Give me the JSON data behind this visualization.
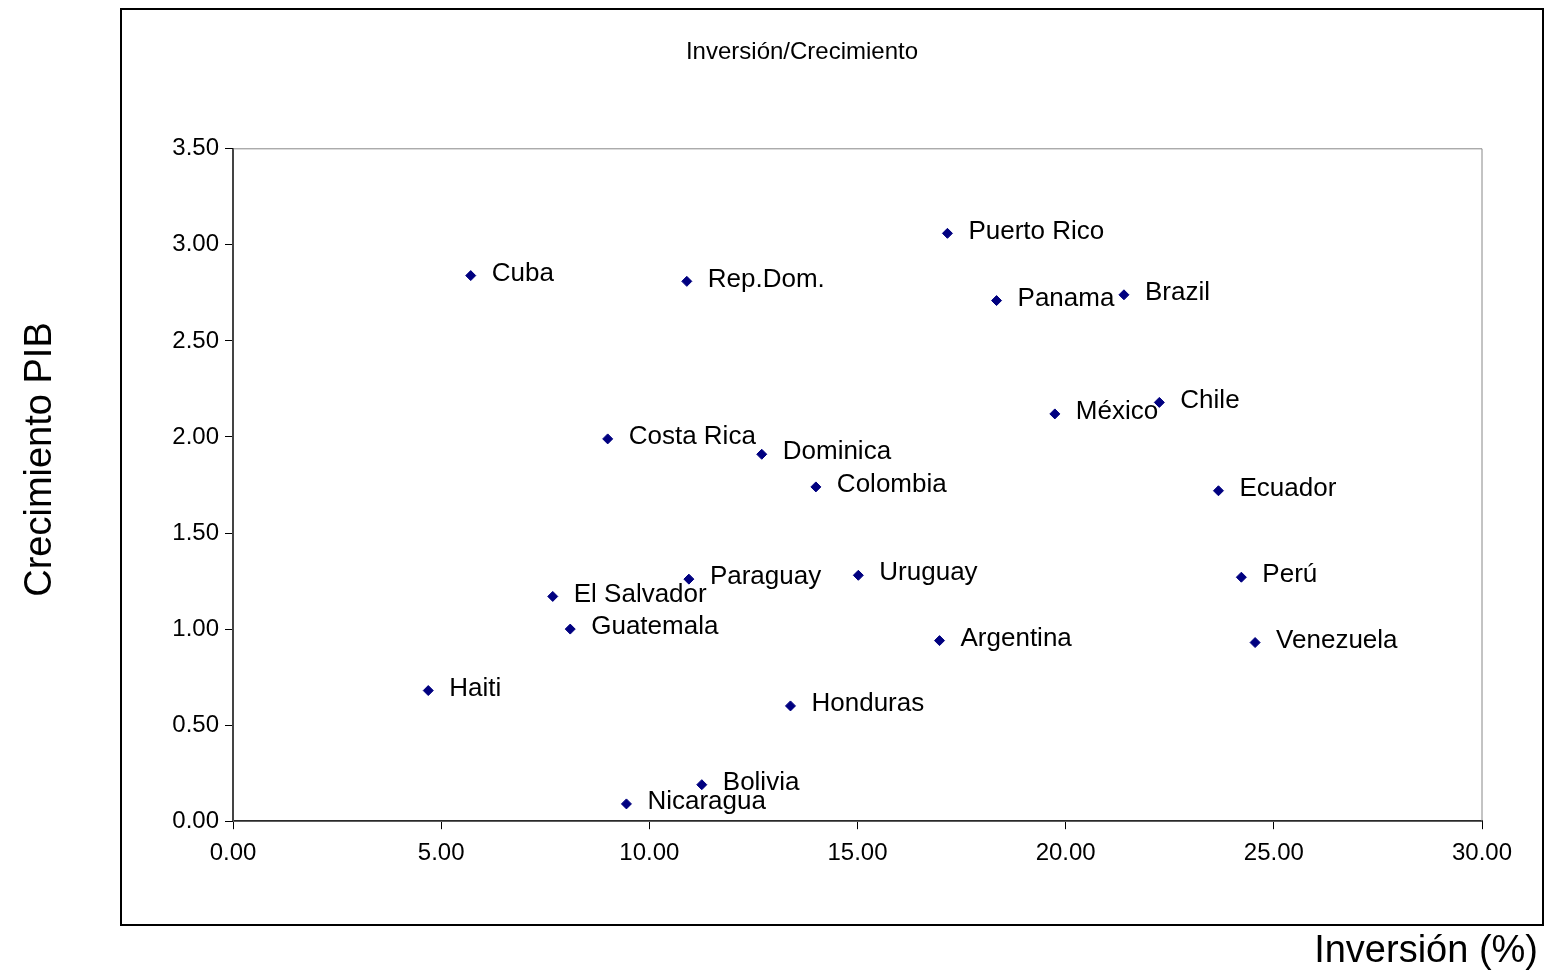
{
  "chart_data": {
    "type": "scatter",
    "title": "Inversión/Crecimiento",
    "xlabel": "Inversión (%)",
    "ylabel": "Crecimiento PIB",
    "x": [
      5.71,
      10.9,
      17.16,
      18.34,
      21.4,
      19.74,
      22.25,
      9.0,
      12.7,
      14.0,
      23.67,
      10.95,
      15.02,
      24.22,
      7.68,
      8.1,
      16.97,
      24.55,
      4.69,
      13.39,
      11.26,
      9.45
    ],
    "series": [
      {
        "color": "#000080",
        "values": [
          2.84,
          2.81,
          3.06,
          2.71,
          2.74,
          2.12,
          2.18,
          1.99,
          1.91,
          1.74,
          1.72,
          1.26,
          1.28,
          1.27,
          1.17,
          1.0,
          0.94,
          0.93,
          0.68,
          0.6,
          0.19,
          0.09
        ]
      }
    ],
    "annotations": [
      {
        "text": "Cuba",
        "x": 5.71,
        "y": 2.84
      },
      {
        "text": "Rep.Dom.",
        "x": 10.9,
        "y": 2.81
      },
      {
        "text": "Puerto Rico",
        "x": 17.16,
        "y": 3.06
      },
      {
        "text": "Panama",
        "x": 18.34,
        "y": 2.71
      },
      {
        "text": "Brazil",
        "x": 21.4,
        "y": 2.74
      },
      {
        "text": "México",
        "x": 19.74,
        "y": 2.12
      },
      {
        "text": "Chile",
        "x": 22.25,
        "y": 2.18
      },
      {
        "text": "Costa Rica",
        "x": 9.0,
        "y": 1.99
      },
      {
        "text": "Dominica",
        "x": 12.7,
        "y": 1.91
      },
      {
        "text": "Colombia",
        "x": 14.0,
        "y": 1.74
      },
      {
        "text": "Ecuador",
        "x": 23.67,
        "y": 1.72
      },
      {
        "text": "Paraguay",
        "x": 10.95,
        "y": 1.26
      },
      {
        "text": "Uruguay",
        "x": 15.02,
        "y": 1.28
      },
      {
        "text": "Perú",
        "x": 24.22,
        "y": 1.27
      },
      {
        "text": "El Salvador",
        "x": 7.68,
        "y": 1.17
      },
      {
        "text": "Guatemala",
        "x": 8.1,
        "y": 1.0
      },
      {
        "text": "Argentina",
        "x": 16.97,
        "y": 0.94
      },
      {
        "text": "Venezuela",
        "x": 24.55,
        "y": 0.93
      },
      {
        "text": "Haiti",
        "x": 4.69,
        "y": 0.68
      },
      {
        "text": "Honduras",
        "x": 13.39,
        "y": 0.6
      },
      {
        "text": "Bolivia",
        "x": 11.26,
        "y": 0.19
      },
      {
        "text": "Nicaragua",
        "x": 9.45,
        "y": 0.09
      }
    ],
    "xlim": [
      0,
      30
    ],
    "ylim": [
      0,
      3.5
    ],
    "xticks": [
      {
        "value": 0,
        "label": "0.00"
      },
      {
        "value": 5,
        "label": "5.00"
      },
      {
        "value": 10,
        "label": "10.00"
      },
      {
        "value": 15,
        "label": "15.00"
      },
      {
        "value": 20,
        "label": "20.00"
      },
      {
        "value": 25,
        "label": "25.00"
      },
      {
        "value": 30,
        "label": "30.00"
      }
    ],
    "yticks": [
      {
        "value": 0,
        "label": "0.00"
      },
      {
        "value": 0.5,
        "label": "0.50"
      },
      {
        "value": 1,
        "label": "1.00"
      },
      {
        "value": 1.5,
        "label": "1.50"
      },
      {
        "value": 2,
        "label": "2.00"
      },
      {
        "value": 2.5,
        "label": "2.50"
      },
      {
        "value": 3,
        "label": "3.00"
      },
      {
        "value": 3.5,
        "label": "3.50"
      }
    ],
    "grid": false,
    "legend": false,
    "marker": "diamond"
  }
}
